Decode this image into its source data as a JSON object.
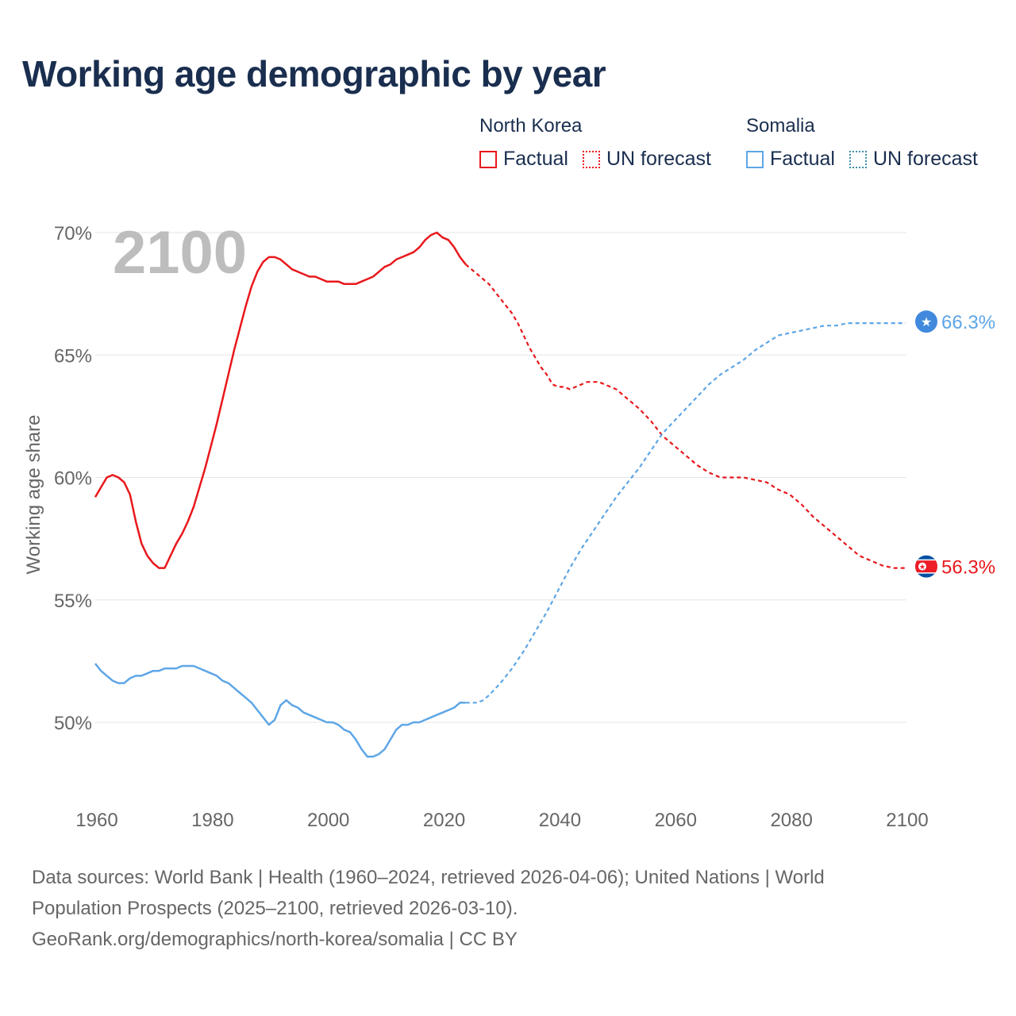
{
  "title": "Working age demographic by year",
  "legend": {
    "groups": [
      {
        "country": "North Korea",
        "factual_label": "Factual",
        "forecast_label": "UN forecast",
        "color": "#e8181c",
        "forecast_color": "#e8181c"
      },
      {
        "country": "Somalia",
        "factual_label": "Factual",
        "forecast_label": "UN forecast",
        "color": "#5ea6e6",
        "forecast_color": "#3d8fa8"
      }
    ]
  },
  "year_watermark": "2100",
  "source": {
    "line1": "Data sources: World Bank | Health (1960–2024, retrieved 2026-04-06); United Nations | World",
    "line2": "Population Prospects (2025–2100, retrieved 2026-03-10).",
    "line3": "GeoRank.org/demographics/north-korea/somalia | CC BY"
  },
  "chart_data": {
    "type": "line",
    "title": "Working age demographic by year",
    "xlabel": "",
    "ylabel": "Working age share",
    "xlim": [
      1960,
      2100
    ],
    "ylim": [
      47,
      71
    ],
    "x_ticks": [
      1960,
      1980,
      2000,
      2020,
      2040,
      2060,
      2080,
      2100
    ],
    "y_ticks": [
      50,
      55,
      60,
      65,
      70
    ],
    "y_tick_labels": [
      "50%",
      "55%",
      "60%",
      "65%",
      "70%"
    ],
    "x_tick_labels": [
      "1960",
      "1980",
      "2000",
      "2020",
      "2040",
      "2060",
      "2080",
      "2100"
    ],
    "grid": true,
    "factual_end_year": 2024,
    "series": [
      {
        "name": "North Korea",
        "color": "#e8181c",
        "end_label": "56.3%",
        "flag": "north-korea-flag",
        "points": [
          [
            1960,
            59.2
          ],
          [
            1961,
            59.6
          ],
          [
            1962,
            60.0
          ],
          [
            1963,
            60.1
          ],
          [
            1964,
            60.0
          ],
          [
            1965,
            59.8
          ],
          [
            1966,
            59.3
          ],
          [
            1967,
            58.2
          ],
          [
            1968,
            57.3
          ],
          [
            1969,
            56.8
          ],
          [
            1970,
            56.5
          ],
          [
            1971,
            56.3
          ],
          [
            1972,
            56.3
          ],
          [
            1973,
            56.8
          ],
          [
            1974,
            57.3
          ],
          [
            1975,
            57.7
          ],
          [
            1976,
            58.2
          ],
          [
            1977,
            58.8
          ],
          [
            1978,
            59.6
          ],
          [
            1979,
            60.4
          ],
          [
            1980,
            61.3
          ],
          [
            1981,
            62.2
          ],
          [
            1982,
            63.2
          ],
          [
            1983,
            64.2
          ],
          [
            1984,
            65.2
          ],
          [
            1985,
            66.1
          ],
          [
            1986,
            67.0
          ],
          [
            1987,
            67.8
          ],
          [
            1988,
            68.4
          ],
          [
            1989,
            68.8
          ],
          [
            1990,
            69.0
          ],
          [
            1991,
            69.0
          ],
          [
            1992,
            68.9
          ],
          [
            1993,
            68.7
          ],
          [
            1994,
            68.5
          ],
          [
            1995,
            68.4
          ],
          [
            1996,
            68.3
          ],
          [
            1997,
            68.2
          ],
          [
            1998,
            68.2
          ],
          [
            1999,
            68.1
          ],
          [
            2000,
            68.0
          ],
          [
            2001,
            68.0
          ],
          [
            2002,
            68.0
          ],
          [
            2003,
            67.9
          ],
          [
            2004,
            67.9
          ],
          [
            2005,
            67.9
          ],
          [
            2006,
            68.0
          ],
          [
            2007,
            68.1
          ],
          [
            2008,
            68.2
          ],
          [
            2009,
            68.4
          ],
          [
            2010,
            68.6
          ],
          [
            2011,
            68.7
          ],
          [
            2012,
            68.9
          ],
          [
            2013,
            69.0
          ],
          [
            2014,
            69.1
          ],
          [
            2015,
            69.2
          ],
          [
            2016,
            69.4
          ],
          [
            2017,
            69.7
          ],
          [
            2018,
            69.9
          ],
          [
            2019,
            70.0
          ],
          [
            2020,
            69.8
          ],
          [
            2021,
            69.7
          ],
          [
            2022,
            69.4
          ],
          [
            2023,
            69.0
          ],
          [
            2024,
            68.7
          ],
          [
            2025,
            68.5
          ],
          [
            2026,
            68.3
          ],
          [
            2027,
            68.1
          ],
          [
            2028,
            67.9
          ],
          [
            2029,
            67.6
          ],
          [
            2030,
            67.3
          ],
          [
            2031,
            67.0
          ],
          [
            2032,
            66.7
          ],
          [
            2033,
            66.3
          ],
          [
            2034,
            65.8
          ],
          [
            2035,
            65.3
          ],
          [
            2036,
            64.9
          ],
          [
            2037,
            64.5
          ],
          [
            2038,
            64.2
          ],
          [
            2039,
            63.8
          ],
          [
            2040,
            63.7
          ],
          [
            2041,
            63.7
          ],
          [
            2042,
            63.6
          ],
          [
            2043,
            63.7
          ],
          [
            2044,
            63.8
          ],
          [
            2045,
            63.9
          ],
          [
            2046,
            63.9
          ],
          [
            2047,
            63.9
          ],
          [
            2048,
            63.8
          ],
          [
            2049,
            63.7
          ],
          [
            2050,
            63.6
          ],
          [
            2052,
            63.2
          ],
          [
            2054,
            62.8
          ],
          [
            2056,
            62.3
          ],
          [
            2058,
            61.7
          ],
          [
            2060,
            61.3
          ],
          [
            2062,
            60.9
          ],
          [
            2064,
            60.5
          ],
          [
            2066,
            60.2
          ],
          [
            2068,
            60.0
          ],
          [
            2070,
            60.0
          ],
          [
            2072,
            60.0
          ],
          [
            2074,
            59.9
          ],
          [
            2076,
            59.8
          ],
          [
            2078,
            59.5
          ],
          [
            2080,
            59.3
          ],
          [
            2082,
            58.9
          ],
          [
            2084,
            58.4
          ],
          [
            2086,
            58.0
          ],
          [
            2088,
            57.6
          ],
          [
            2090,
            57.2
          ],
          [
            2092,
            56.8
          ],
          [
            2094,
            56.6
          ],
          [
            2096,
            56.4
          ],
          [
            2098,
            56.3
          ],
          [
            2100,
            56.3
          ]
        ]
      },
      {
        "name": "Somalia",
        "color": "#5ea6e6",
        "end_label": "66.3%",
        "flag": "somalia-flag",
        "points": [
          [
            1960,
            52.4
          ],
          [
            1961,
            52.1
          ],
          [
            1962,
            51.9
          ],
          [
            1963,
            51.7
          ],
          [
            1964,
            51.6
          ],
          [
            1965,
            51.6
          ],
          [
            1966,
            51.8
          ],
          [
            1967,
            51.9
          ],
          [
            1968,
            51.9
          ],
          [
            1969,
            52.0
          ],
          [
            1970,
            52.1
          ],
          [
            1971,
            52.1
          ],
          [
            1972,
            52.2
          ],
          [
            1973,
            52.2
          ],
          [
            1974,
            52.2
          ],
          [
            1975,
            52.3
          ],
          [
            1976,
            52.3
          ],
          [
            1977,
            52.3
          ],
          [
            1978,
            52.2
          ],
          [
            1979,
            52.1
          ],
          [
            1980,
            52.0
          ],
          [
            1981,
            51.9
          ],
          [
            1982,
            51.7
          ],
          [
            1983,
            51.6
          ],
          [
            1984,
            51.4
          ],
          [
            1985,
            51.2
          ],
          [
            1986,
            51.0
          ],
          [
            1987,
            50.8
          ],
          [
            1988,
            50.5
          ],
          [
            1989,
            50.2
          ],
          [
            1990,
            49.9
          ],
          [
            1991,
            50.1
          ],
          [
            1992,
            50.7
          ],
          [
            1993,
            50.9
          ],
          [
            1994,
            50.7
          ],
          [
            1995,
            50.6
          ],
          [
            1996,
            50.4
          ],
          [
            1997,
            50.3
          ],
          [
            1998,
            50.2
          ],
          [
            1999,
            50.1
          ],
          [
            2000,
            50.0
          ],
          [
            2001,
            50.0
          ],
          [
            2002,
            49.9
          ],
          [
            2003,
            49.7
          ],
          [
            2004,
            49.6
          ],
          [
            2005,
            49.3
          ],
          [
            2006,
            48.9
          ],
          [
            2007,
            48.6
          ],
          [
            2008,
            48.6
          ],
          [
            2009,
            48.7
          ],
          [
            2010,
            48.9
          ],
          [
            2011,
            49.3
          ],
          [
            2012,
            49.7
          ],
          [
            2013,
            49.9
          ],
          [
            2014,
            49.9
          ],
          [
            2015,
            50.0
          ],
          [
            2016,
            50.0
          ],
          [
            2017,
            50.1
          ],
          [
            2018,
            50.2
          ],
          [
            2019,
            50.3
          ],
          [
            2020,
            50.4
          ],
          [
            2021,
            50.5
          ],
          [
            2022,
            50.6
          ],
          [
            2023,
            50.8
          ],
          [
            2024,
            50.8
          ],
          [
            2025,
            50.8
          ],
          [
            2026,
            50.8
          ],
          [
            2027,
            50.9
          ],
          [
            2028,
            51.1
          ],
          [
            2030,
            51.6
          ],
          [
            2032,
            52.2
          ],
          [
            2034,
            52.9
          ],
          [
            2036,
            53.7
          ],
          [
            2038,
            54.5
          ],
          [
            2040,
            55.4
          ],
          [
            2042,
            56.3
          ],
          [
            2044,
            57.1
          ],
          [
            2046,
            57.8
          ],
          [
            2048,
            58.5
          ],
          [
            2050,
            59.2
          ],
          [
            2052,
            59.8
          ],
          [
            2054,
            60.4
          ],
          [
            2056,
            61.1
          ],
          [
            2058,
            61.8
          ],
          [
            2060,
            62.3
          ],
          [
            2062,
            62.8
          ],
          [
            2064,
            63.3
          ],
          [
            2066,
            63.8
          ],
          [
            2068,
            64.2
          ],
          [
            2070,
            64.5
          ],
          [
            2072,
            64.8
          ],
          [
            2074,
            65.2
          ],
          [
            2076,
            65.5
          ],
          [
            2078,
            65.8
          ],
          [
            2080,
            65.9
          ],
          [
            2082,
            66.0
          ],
          [
            2084,
            66.1
          ],
          [
            2086,
            66.2
          ],
          [
            2088,
            66.2
          ],
          [
            2090,
            66.3
          ],
          [
            2092,
            66.3
          ],
          [
            2094,
            66.3
          ],
          [
            2096,
            66.3
          ],
          [
            2098,
            66.3
          ],
          [
            2100,
            66.3
          ]
        ]
      }
    ]
  }
}
